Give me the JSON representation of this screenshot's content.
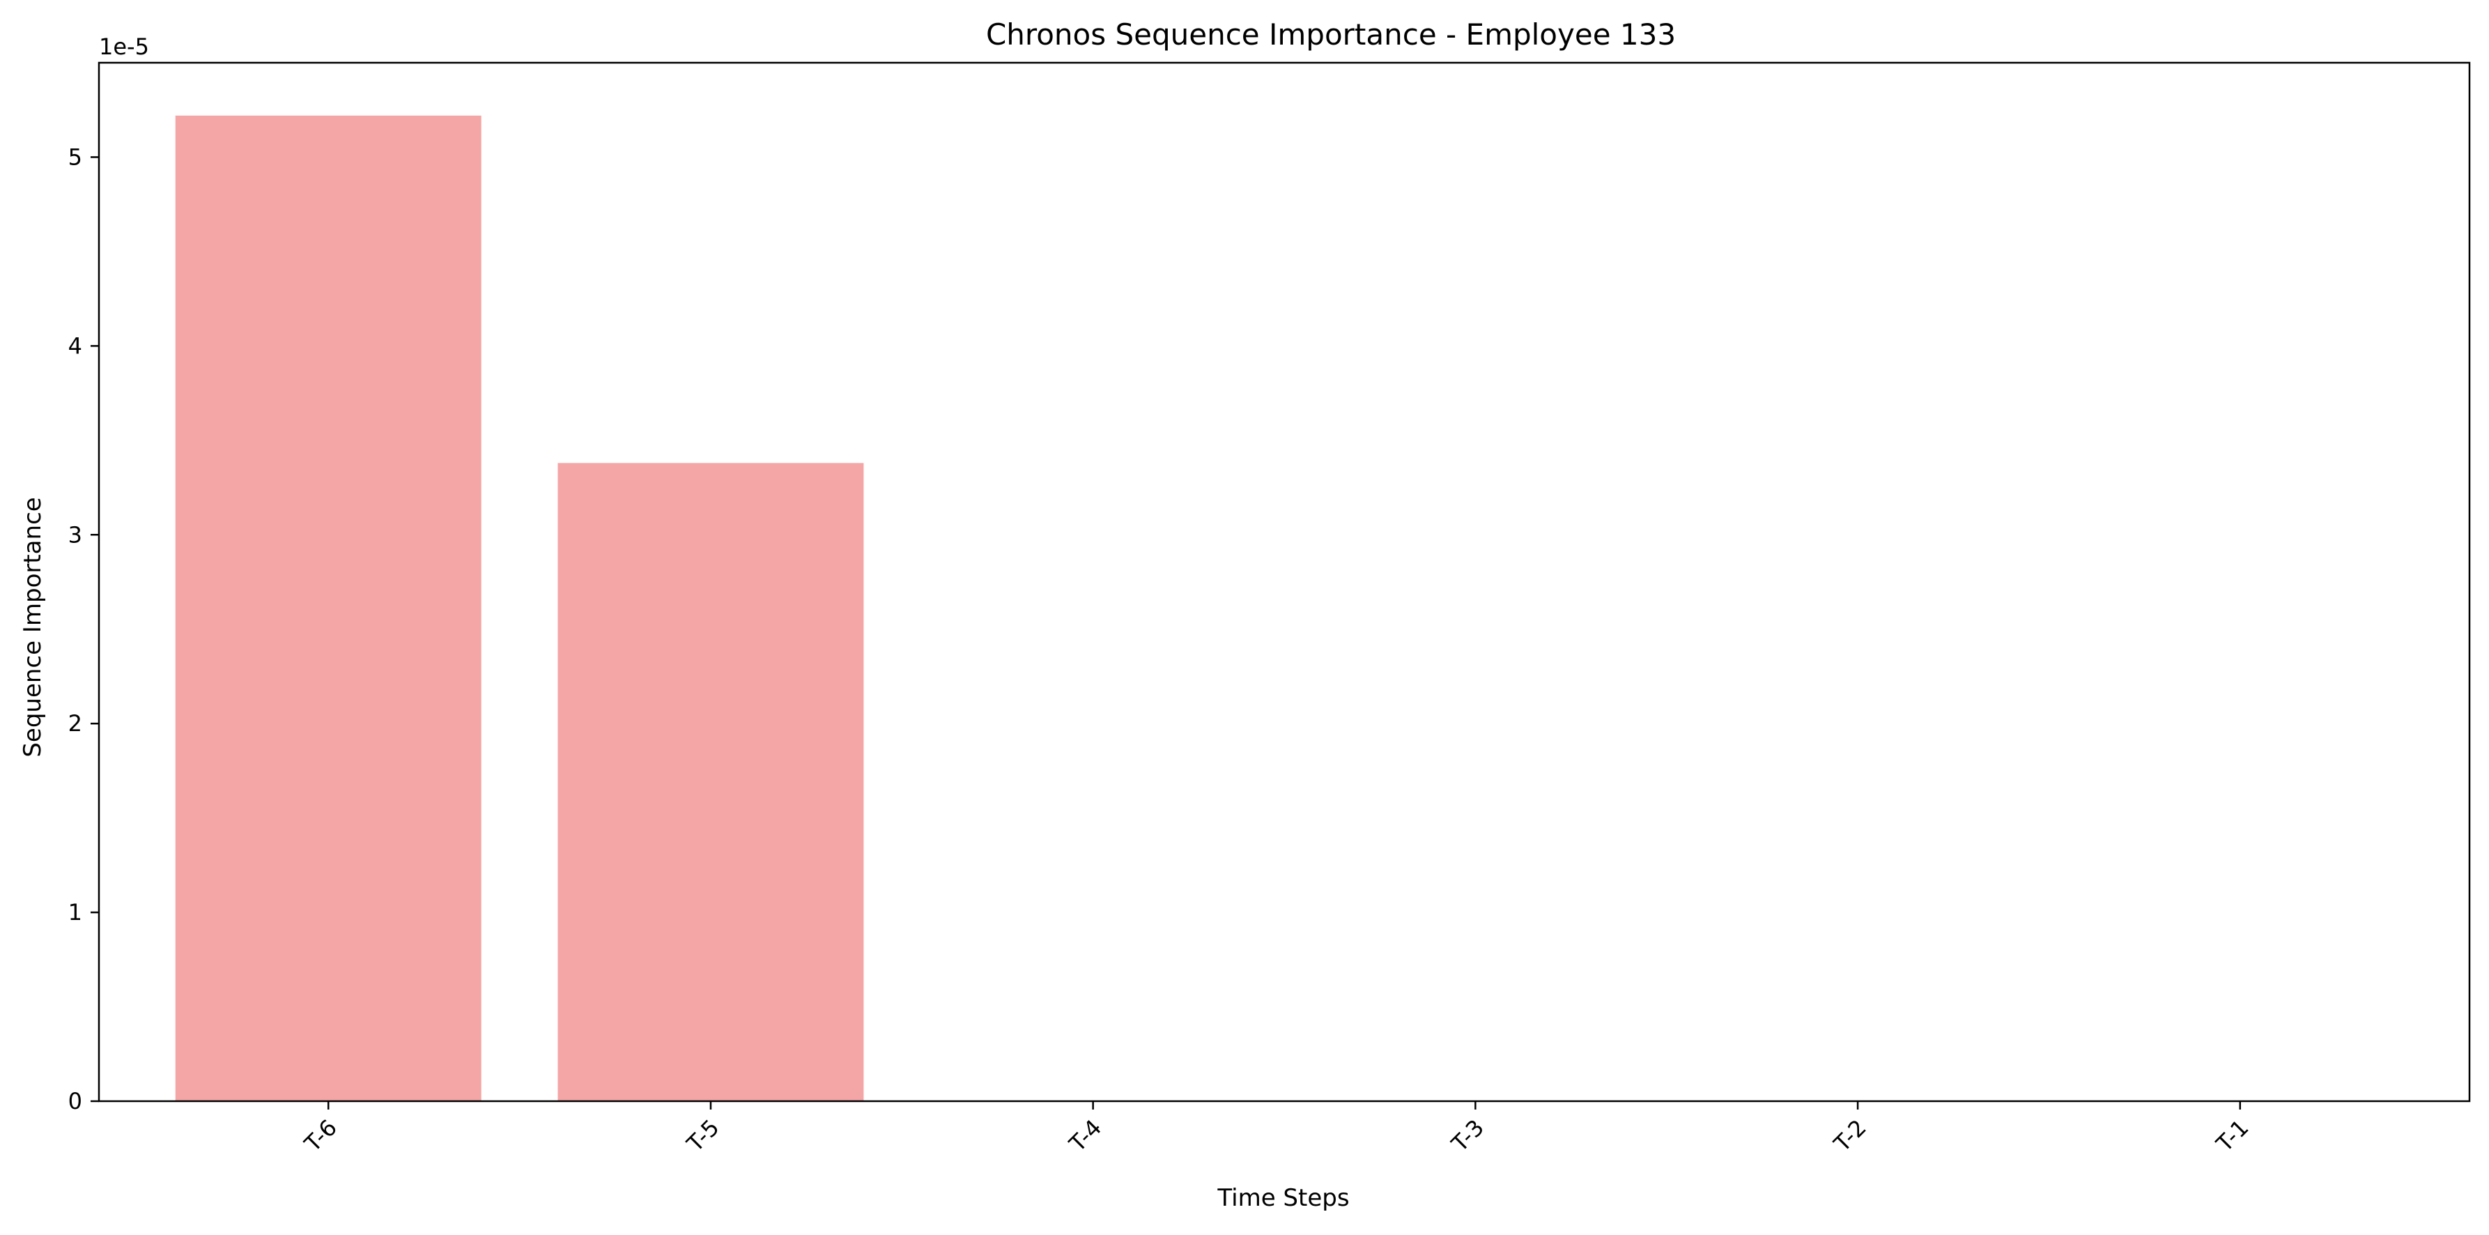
{
  "chart_data": {
    "type": "bar",
    "title": "Chronos Sequence Importance - Employee 133",
    "xlabel": "Time Steps",
    "ylabel": "Sequence Importance",
    "y_offset_label": "1e-5",
    "categories": [
      "T-6",
      "T-5",
      "T-4",
      "T-3",
      "T-2",
      "T-1"
    ],
    "values": [
      5.22,
      3.38,
      0,
      0,
      0,
      0
    ],
    "value_scale": "1e-5",
    "ylim": [
      0,
      5.5
    ],
    "yticks": [
      0,
      1,
      2,
      3,
      4,
      5
    ],
    "ytick_labels": [
      "0",
      "1",
      "2",
      "3",
      "4",
      "5"
    ],
    "bar_color": "#f4a6a7",
    "grid": false,
    "x_tick_rotation_deg": 45
  }
}
